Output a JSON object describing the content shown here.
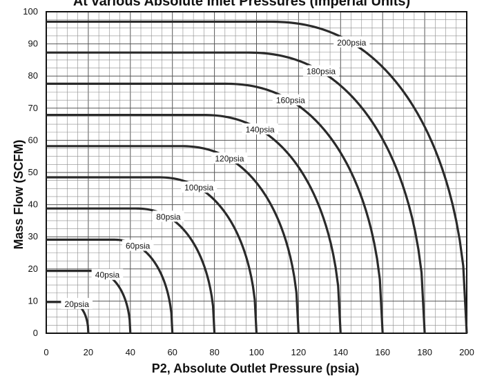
{
  "chart_data": {
    "type": "line",
    "title": "At various Absolute Inlet Pressures (Imperial Units)",
    "xlabel": "P2, Absolute Outlet Pressure (psia)",
    "ylabel": "Mass Flow (SCFM)",
    "xlim": [
      0,
      200
    ],
    "ylim": [
      0,
      100
    ],
    "x_ticks": [
      "0",
      "20",
      "40",
      "60",
      "80",
      "100",
      "120",
      "140",
      "160",
      "180",
      "200"
    ],
    "y_ticks": [
      "0",
      "10",
      "20",
      "30",
      "40",
      "50",
      "60",
      "70",
      "80",
      "90",
      "100"
    ],
    "grid": true,
    "series": [
      {
        "name": "20psia",
        "inlet": 20,
        "max_flow": 9.7
      },
      {
        "name": "40psia",
        "inlet": 40,
        "max_flow": 19.4
      },
      {
        "name": "60psia",
        "inlet": 60,
        "max_flow": 29.1
      },
      {
        "name": "80psia",
        "inlet": 80,
        "max_flow": 38.8
      },
      {
        "name": "100psia",
        "inlet": 100,
        "max_flow": 48.5
      },
      {
        "name": "120psia",
        "inlet": 120,
        "max_flow": 58.2
      },
      {
        "name": "140psia",
        "inlet": 140,
        "max_flow": 67.9
      },
      {
        "name": "160psia",
        "inlet": 160,
        "max_flow": 77.6
      },
      {
        "name": "180psia",
        "inlet": 180,
        "max_flow": 87.3
      },
      {
        "name": "200psia",
        "inlet": 200,
        "max_flow": 96.9
      }
    ]
  }
}
